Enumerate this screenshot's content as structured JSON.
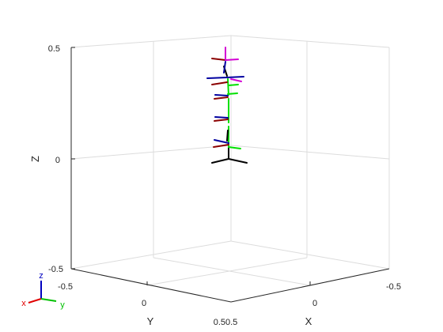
{
  "plot": {
    "axis_labels": {
      "x": "X",
      "y": "Y",
      "z": "Z"
    },
    "ticks": {
      "z": [
        "0.5",
        "0",
        "-0.5"
      ],
      "y": [
        "-0.5",
        "0",
        "0.5"
      ],
      "x": [
        "0.5",
        "0",
        "-0.5"
      ]
    },
    "orientation_indicator": {
      "z": "z",
      "x": "x",
      "y": "y"
    }
  },
  "colors": {
    "box": "#262626",
    "grid": "#dcdcdc",
    "frame_red": "#8b0000",
    "frame_green": "#00e000",
    "frame_blue": "#0000a0",
    "frame_magenta": "#d400d4",
    "base_black": "#000000",
    "indicator_x": "#e00000",
    "indicator_y": "#00c000",
    "indicator_z": "#0000c0"
  },
  "icons": {
    "orientation": "axes-orientation-triad-icon"
  }
}
